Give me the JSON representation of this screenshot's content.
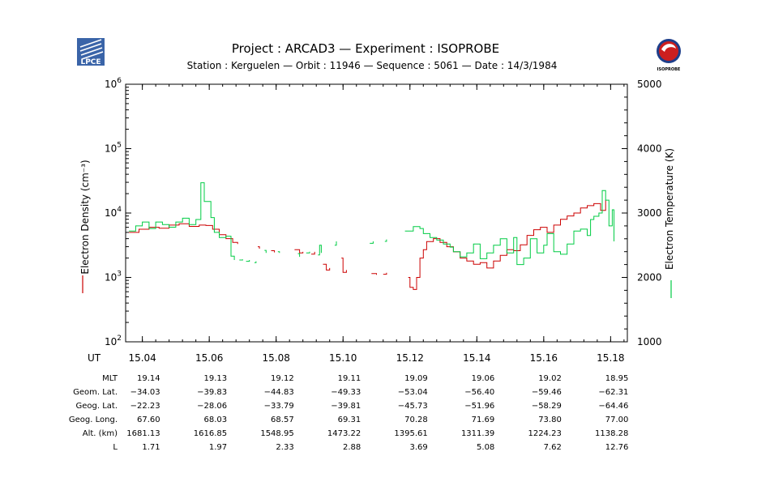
{
  "header": {
    "title": "Project : ARCAD3  —  Experiment : ISOPROBE",
    "subtitle": "Station : Kerguelen  —  Orbit : 11946  —  Sequence : 5061  —  Date : 14/3/1984",
    "left_logo_text": "LPCE",
    "right_logo_text": "ISOPROBE"
  },
  "colors": {
    "density": "#cc0000",
    "temperature": "#00cc44",
    "axes": "#000000"
  },
  "chart_data": {
    "type": "line",
    "title": "Project : ARCAD3  —  Experiment : ISOPROBE",
    "xlabel": "UT",
    "ylabel_left": "Electron Density (cm⁻³)",
    "ylabel_right": "Electron Temperature (K)",
    "xlim": [
      15.035,
      15.185
    ],
    "ylim_left": [
      100,
      1000000
    ],
    "yscale_left": "log",
    "ylim_right": [
      1000,
      5000
    ],
    "x_ticks": [
      "15.04",
      "15.06",
      "15.08",
      "15.10",
      "15.12",
      "15.14",
      "15.16",
      "15.18"
    ],
    "y_ticks_left": [
      {
        "base": "10",
        "exp": "2"
      },
      {
        "base": "10",
        "exp": "3"
      },
      {
        "base": "10",
        "exp": "4"
      },
      {
        "base": "10",
        "exp": "5"
      },
      {
        "base": "10",
        "exp": "6"
      }
    ],
    "y_ticks_right": [
      "1000",
      "2000",
      "3000",
      "4000",
      "5000"
    ],
    "grid": false,
    "series": [
      {
        "axis": "left",
        "step": true,
        "segments": [
          [
            [
              15.036,
              5000
            ],
            [
              15.039,
              5600
            ],
            [
              15.042,
              6000
            ],
            [
              15.045,
              5800
            ],
            [
              15.048,
              6500
            ],
            [
              15.051,
              6800
            ],
            [
              15.054,
              6200
            ],
            [
              15.057,
              6500
            ],
            [
              15.059,
              6400
            ],
            [
              15.061,
              5600
            ],
            [
              15.063,
              4600
            ],
            [
              15.065,
              4000
            ],
            [
              15.067,
              3500
            ],
            [
              15.0685,
              3300
            ]
          ],
          [
            [
              15.0745,
              3000
            ],
            [
              15.075,
              2800
            ]
          ],
          [
            [
              15.0785,
              2600
            ],
            [
              15.0795,
              2450
            ]
          ],
          [
            [
              15.0855,
              2700
            ],
            [
              15.087,
              2400
            ],
            [
              15.088,
              2500
            ]
          ],
          [
            [
              15.0905,
              2300
            ],
            [
              15.0915,
              2500
            ]
          ],
          [
            [
              15.094,
              1600
            ],
            [
              15.095,
              1300
            ],
            [
              15.096,
              1400
            ]
          ],
          [
            [
              15.0995,
              2000
            ],
            [
              15.1,
              1200
            ],
            [
              15.101,
              1300
            ]
          ],
          [
            [
              15.1085,
              1150
            ],
            [
              15.11,
              1100
            ]
          ],
          [
            [
              15.112,
              1120
            ],
            [
              15.113,
              1180
            ]
          ],
          [
            [
              15.1195,
              1000
            ],
            [
              15.12,
              700
            ],
            [
              15.121,
              650
            ],
            [
              15.122,
              1000
            ],
            [
              15.123,
              2000
            ],
            [
              15.124,
              2700
            ],
            [
              15.125,
              3600
            ],
            [
              15.127,
              4000
            ],
            [
              15.129,
              3500
            ],
            [
              15.131,
              3000
            ],
            [
              15.133,
              2500
            ],
            [
              15.135,
              2000
            ],
            [
              15.137,
              1800
            ],
            [
              15.139,
              1600
            ],
            [
              15.141,
              1700
            ],
            [
              15.143,
              1400
            ],
            [
              15.145,
              1800
            ],
            [
              15.147,
              2200
            ],
            [
              15.149,
              2700
            ],
            [
              15.151,
              2600
            ],
            [
              15.153,
              3200
            ],
            [
              15.155,
              4500
            ],
            [
              15.157,
              5500
            ],
            [
              15.159,
              6000
            ],
            [
              15.161,
              5000
            ],
            [
              15.163,
              6500
            ],
            [
              15.165,
              8000
            ],
            [
              15.167,
              9000
            ],
            [
              15.169,
              10000
            ],
            [
              15.171,
              12000
            ],
            [
              15.173,
              13000
            ],
            [
              15.175,
              14000
            ],
            [
              15.177,
              11000
            ],
            [
              15.1785,
              16000
            ]
          ]
        ]
      },
      {
        "axis": "right",
        "step": true,
        "segments": [
          [
            [
              15.036,
              2720
            ],
            [
              15.038,
              2800
            ],
            [
              15.04,
              2860
            ],
            [
              15.042,
              2760
            ],
            [
              15.044,
              2860
            ],
            [
              15.046,
              2820
            ],
            [
              15.048,
              2780
            ],
            [
              15.05,
              2860
            ],
            [
              15.052,
              2920
            ],
            [
              15.054,
              2820
            ],
            [
              15.056,
              2900
            ],
            [
              15.0575,
              3470
            ],
            [
              15.0585,
              3180
            ],
            [
              15.0605,
              2930
            ],
            [
              15.0615,
              2700
            ],
            [
              15.063,
              2620
            ],
            [
              15.065,
              2640
            ],
            [
              15.0665,
              2330
            ],
            [
              15.0675,
              2270
            ]
          ],
          [
            [
              15.069,
              2270
            ],
            [
              15.07,
              2280
            ]
          ],
          [
            [
              15.071,
              2250
            ],
            [
              15.072,
              2270
            ]
          ],
          [
            [
              15.0735,
              2230
            ],
            [
              15.074,
              2250
            ]
          ],
          [
            [
              15.0765,
              2420
            ],
            [
              15.077,
              2380
            ]
          ],
          [
            [
              15.0805,
              2400
            ],
            [
              15.081,
              2380
            ]
          ],
          [
            [
              15.0865,
              2370
            ],
            [
              15.087,
              2320
            ]
          ],
          [
            [
              15.089,
              2380
            ],
            [
              15.09,
              2400
            ]
          ],
          [
            [
              15.0925,
              2350
            ],
            [
              15.093,
              2500
            ],
            [
              15.0935,
              2380
            ]
          ],
          [
            [
              15.0975,
              2500
            ],
            [
              15.098,
              2560
            ]
          ],
          [
            [
              15.108,
              2530
            ],
            [
              15.109,
              2560
            ]
          ],
          [
            [
              15.1125,
              2560
            ],
            [
              15.113,
              2590
            ]
          ],
          [
            [
              15.1185,
              2720
            ],
            [
              15.121,
              2790
            ],
            [
              15.123,
              2760
            ],
            [
              15.124,
              2680
            ],
            [
              15.126,
              2620
            ],
            [
              15.128,
              2580
            ],
            [
              15.13,
              2520
            ],
            [
              15.132,
              2470
            ],
            [
              15.133,
              2400
            ],
            [
              15.135,
              2320
            ],
            [
              15.137,
              2380
            ],
            [
              15.139,
              2520
            ],
            [
              15.141,
              2290
            ],
            [
              15.143,
              2380
            ],
            [
              15.145,
              2500
            ],
            [
              15.147,
              2600
            ],
            [
              15.149,
              2380
            ],
            [
              15.151,
              2620
            ],
            [
              15.152,
              2200
            ],
            [
              15.154,
              2300
            ],
            [
              15.156,
              2600
            ],
            [
              15.158,
              2380
            ],
            [
              15.16,
              2500
            ],
            [
              15.161,
              2680
            ],
            [
              15.163,
              2400
            ],
            [
              15.165,
              2360
            ],
            [
              15.167,
              2520
            ],
            [
              15.169,
              2720
            ],
            [
              15.171,
              2750
            ],
            [
              15.173,
              2650
            ],
            [
              15.174,
              2900
            ],
            [
              15.175,
              2950
            ],
            [
              15.1765,
              3000
            ],
            [
              15.1775,
              3350
            ],
            [
              15.1785,
              3200
            ],
            [
              15.1795,
              2800
            ],
            [
              15.1805,
              3050
            ],
            [
              15.181,
              2560
            ]
          ]
        ]
      }
    ]
  },
  "ephemeris": {
    "columns": [
      "15.04",
      "15.06",
      "15.08",
      "15.10",
      "15.12",
      "15.14",
      "15.16",
      "15.18"
    ],
    "rows": [
      {
        "label": "MLT",
        "values": [
          "19.14",
          "19.13",
          "19.12",
          "19.11",
          "19.09",
          "19.06",
          "19.02",
          "18.95"
        ]
      },
      {
        "label": "Geom. Lat.",
        "values": [
          "−34.03",
          "−39.83",
          "−44.83",
          "−49.33",
          "−53.04",
          "−56.40",
          "−59.46",
          "−62.31"
        ]
      },
      {
        "label": "Geog. Lat.",
        "values": [
          "−22.23",
          "−28.06",
          "−33.79",
          "−39.81",
          "−45.73",
          "−51.96",
          "−58.29",
          "−64.46"
        ]
      },
      {
        "label": "Geog. Long.",
        "values": [
          "67.60",
          "68.03",
          "68.57",
          "69.31",
          "70.28",
          "71.69",
          "73.80",
          "77.00"
        ]
      },
      {
        "label": "Alt. (km)",
        "values": [
          "1681.13",
          "1616.85",
          "1548.95",
          "1473.22",
          "1395.61",
          "1311.39",
          "1224.23",
          "1138.28"
        ]
      },
      {
        "label": "L",
        "values": [
          "1.71",
          "1.97",
          "2.33",
          "2.88",
          "3.69",
          "5.08",
          "7.62",
          "12.76"
        ]
      }
    ]
  }
}
